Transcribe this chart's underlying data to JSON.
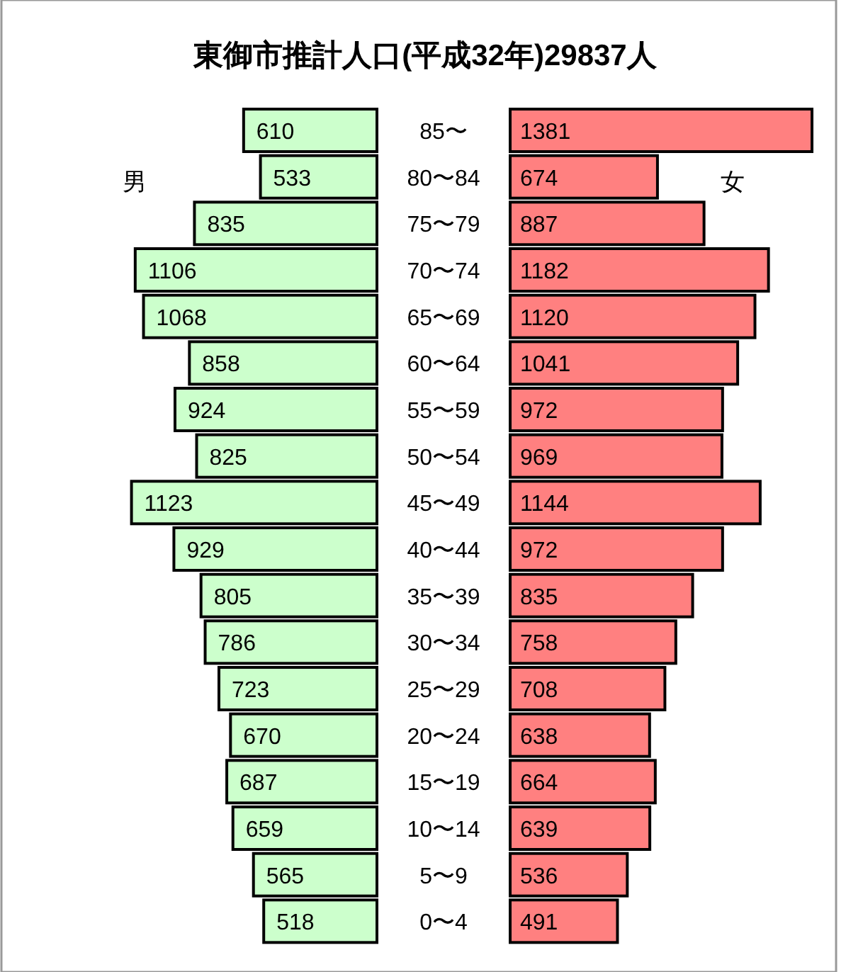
{
  "chart_data": [
    {
      "type": "bar",
      "orientation": "horizontal",
      "title": "東御市推計人口(平成32年)29837人",
      "data_labels": true,
      "categories": [
        "85〜",
        "80〜84",
        "75〜79",
        "70〜74",
        "65〜69",
        "60〜64",
        "55〜59",
        "50〜54",
        "45〜49",
        "40〜44",
        "35〜39",
        "30〜34",
        "25〜29",
        "20〜24",
        "15〜19",
        "10〜14",
        "5〜9",
        "0〜4"
      ],
      "series": [
        {
          "name": "男",
          "color": "#ccffcc",
          "values": [
            610,
            533,
            835,
            1106,
            1068,
            858,
            924,
            825,
            1123,
            929,
            805,
            786,
            723,
            670,
            687,
            659,
            565,
            518
          ]
        }
      ]
    },
    {
      "type": "bar",
      "orientation": "horizontal",
      "data_labels": true,
      "tick_labels": false,
      "categories": [
        "85〜",
        "80〜84",
        "75〜79",
        "70〜74",
        "65〜69",
        "60〜64",
        "55〜59",
        "50〜54",
        "45〜49",
        "40〜44",
        "35〜39",
        "30〜34",
        "25〜29",
        "20〜24",
        "15〜19",
        "10〜14",
        "5〜9",
        "0〜4"
      ],
      "series": [
        {
          "name": "女",
          "color": "#ff8080",
          "values": [
            1381,
            674,
            887,
            1182,
            1120,
            1041,
            972,
            969,
            1144,
            972,
            835,
            758,
            708,
            638,
            664,
            639,
            536,
            491
          ]
        }
      ]
    }
  ]
}
